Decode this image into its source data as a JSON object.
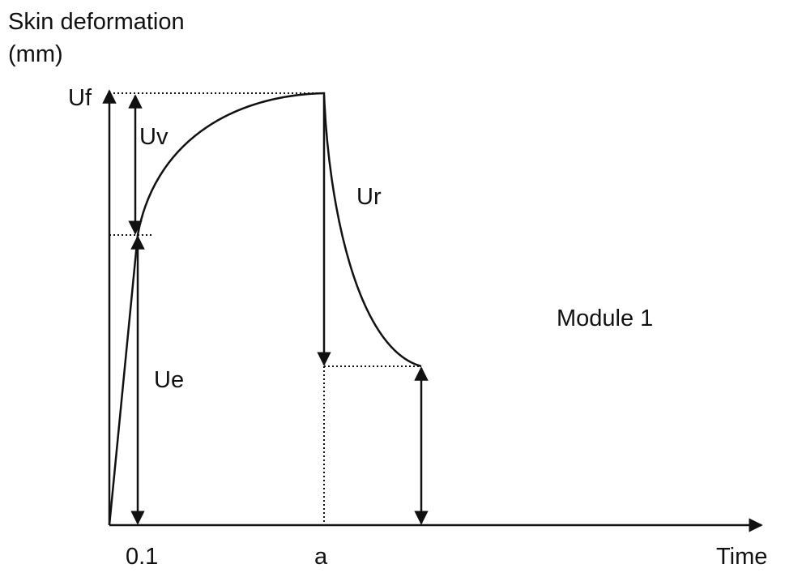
{
  "y_axis": {
    "label_line1": "Skin deformation",
    "label_line2": "(mm)",
    "level_label": "Uf"
  },
  "x_axis": {
    "label": "Time",
    "tick_labels": [
      "0.1",
      "a"
    ]
  },
  "annotations": {
    "uv": "Uv",
    "ue": "Ue",
    "ur": "Ur",
    "module": "Module 1"
  }
}
